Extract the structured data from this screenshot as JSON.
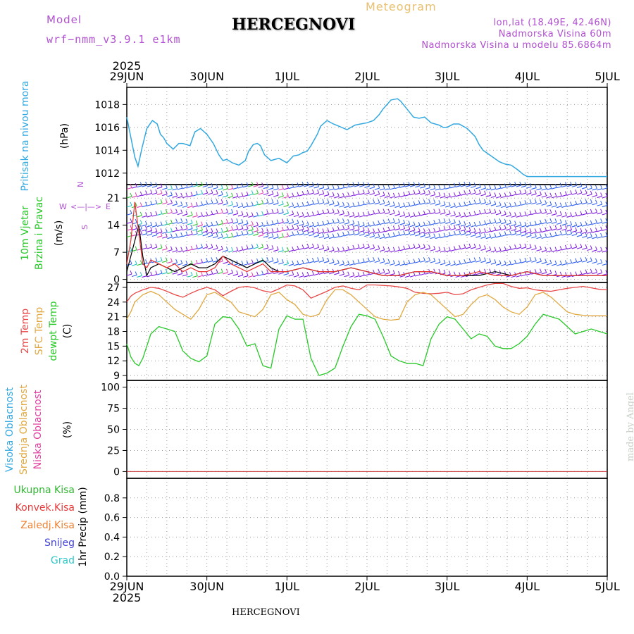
{
  "header": {
    "model_label": "Model",
    "model_name": "wrf−nmm_v3.9.1  e1km",
    "title": "HERCEGNOVI",
    "meteogram": "Meteogram",
    "lonlat": "lon,lat (18.49E, 42.46N)",
    "elevation": "Nadmorska Visina 60m",
    "model_elevation": "Nadmorska Visina u modelu 85.6864m",
    "watermark": "made by Angel",
    "footer_title": "HERCEGNOVI"
  },
  "colors": {
    "pressure": "#33a8e0",
    "temp2m": "#e84848",
    "sfc_temp": "#e0a840",
    "dewpt": "#28c828",
    "wind_speed": "#000000",
    "gust": "#e83030",
    "grid": "#9a9a9a",
    "purple_label": "#b050d0",
    "meteogram_label": "#e8c070"
  },
  "chart_data": [
    {
      "type": "line",
      "panel": "pressure",
      "title": "",
      "ylabel": [
        "Pritisak na nivou mora",
        "(hPa)"
      ],
      "ylim": [
        1011,
        1019.5
      ],
      "yticks": [
        1012,
        1014,
        1016,
        1018
      ],
      "x_ticks": [
        "29JUN",
        "30JUN",
        "1JUL",
        "2JUL",
        "3JUL",
        "4JUL",
        "5JUL"
      ],
      "x_year": "2025",
      "series": [
        {
          "color_key": "pressure",
          "x": [
            0,
            0.04,
            0.08,
            0.1,
            0.14,
            0.19,
            0.25,
            0.32,
            0.38,
            0.42,
            0.46,
            0.5,
            0.58,
            0.65,
            0.7,
            0.79,
            0.85,
            0.92,
            1.0,
            1.08,
            1.15,
            1.2,
            1.25,
            1.32,
            1.4,
            1.48,
            1.52,
            1.58,
            1.63,
            1.67,
            1.72,
            1.8,
            1.9,
            2.0,
            2.08,
            2.15,
            2.2,
            2.25,
            2.3,
            2.38,
            2.42,
            2.5,
            2.58,
            2.65,
            2.75,
            2.85,
            2.92,
            3.0,
            3.08,
            3.15,
            3.2,
            3.25,
            3.3,
            3.38,
            3.42,
            3.5,
            3.58,
            3.65,
            3.72,
            3.8,
            3.9,
            3.95,
            4.0,
            4.08,
            4.15,
            4.25,
            4.35,
            4.4,
            4.45,
            4.55,
            4.65,
            4.72,
            4.8,
            4.88,
            4.95,
            5.0,
            5.05,
            5.1,
            5.15,
            5.2,
            5.28,
            5.35,
            5.45,
            5.5,
            5.55,
            5.6,
            5.65,
            5.72,
            5.8,
            5.88,
            5.95,
            6.0
          ],
          "values": [
            1016.9,
            1015.5,
            1014.1,
            1013.4,
            1012.6,
            1014.2,
            1015.9,
            1016.6,
            1016.3,
            1015.4,
            1015.1,
            1014.6,
            1014.1,
            1014.6,
            1014.6,
            1014.4,
            1015.6,
            1015.9,
            1015.4,
            1014.6,
            1013.6,
            1013.1,
            1013.2,
            1012.9,
            1012.7,
            1013.1,
            1013.9,
            1014.5,
            1014.6,
            1014.4,
            1013.6,
            1013.1,
            1013.3,
            1012.9,
            1013.5,
            1013.6,
            1013.8,
            1013.9,
            1014.4,
            1015.4,
            1016.1,
            1016.6,
            1016.3,
            1016.1,
            1015.8,
            1016.2,
            1016.3,
            1016.4,
            1016.6,
            1017.1,
            1017.6,
            1018.0,
            1018.4,
            1018.5,
            1018.3,
            1017.6,
            1016.9,
            1016.8,
            1016.9,
            1016.4,
            1016.2,
            1016.0,
            1016.0,
            1016.3,
            1016.3,
            1015.9,
            1015.2,
            1014.5,
            1014.0,
            1013.5,
            1013.0,
            1012.8,
            1012.7,
            1012.3,
            1011.9,
            1011.7,
            1011.7,
            1011.7,
            1011.7,
            1011.7,
            1011.7,
            1011.7,
            1011.7,
            1011.7,
            1011.7,
            1011.7,
            1011.7,
            1011.7,
            1011.7,
            1011.7,
            1011.7,
            1011.7
          ]
        }
      ]
    },
    {
      "type": "line",
      "panel": "wind",
      "title": "",
      "ylabel": [
        "10m Vjetar",
        "Brzina i Pravac",
        "(m/s)"
      ],
      "direction_legend": [
        "N",
        "W",
        "E",
        "S",
        "<—|—>"
      ],
      "ylim": [
        -0.8,
        24.5
      ],
      "yticks": [
        0,
        7,
        14,
        21
      ],
      "barb_rows": [
        1,
        4,
        7.5,
        11,
        12.3,
        14,
        16.5,
        19,
        21.5,
        23.5
      ],
      "series": [
        {
          "name": "",
          "color_key": "wind_speed",
          "x": [
            0,
            0.05,
            0.1,
            0.15,
            0.2,
            0.25,
            0.3,
            0.4,
            0.5,
            0.6,
            0.7,
            0.8,
            0.9,
            1.0,
            1.1,
            1.2,
            1.3,
            1.4,
            1.5,
            1.6,
            1.7,
            1.8,
            1.9,
            2.0,
            2.2,
            2.4,
            2.6,
            2.8,
            3.0,
            3.2,
            3.4,
            3.6,
            3.8,
            4.0,
            4.2,
            4.4,
            4.6,
            4.8,
            5.0,
            5.2,
            5.4,
            5.6,
            5.8,
            6.0
          ],
          "values": [
            2,
            6,
            10,
            14,
            6,
            1,
            3,
            4,
            3,
            2,
            3,
            4,
            3,
            3,
            4,
            6,
            5,
            4,
            3,
            4,
            5,
            3,
            2,
            2,
            3,
            2,
            2,
            3,
            2,
            1,
            1,
            2,
            2,
            1,
            1,
            1,
            2,
            1,
            2,
            1,
            1,
            1,
            1,
            1
          ]
        },
        {
          "name": "",
          "color_key": "gust",
          "x": [
            0,
            0.05,
            0.1,
            0.15,
            0.2,
            0.25,
            0.3,
            0.4,
            0.5,
            0.6,
            0.7,
            0.8,
            0.9,
            1.0,
            1.1,
            1.2,
            1.3,
            1.4,
            1.5,
            1.6,
            1.7,
            1.8,
            1.9,
            2.0,
            2.2,
            2.4,
            2.6,
            2.8,
            3.0,
            3.2,
            3.4,
            3.6,
            3.8,
            4.0,
            4.2,
            4.4,
            4.6,
            4.8,
            5.0,
            5.2,
            5.4,
            5.6,
            5.8,
            6.0
          ],
          "values": [
            4,
            10,
            20,
            12,
            4,
            3,
            5,
            4,
            3,
            4,
            2,
            3,
            2,
            2,
            3,
            6,
            4,
            3,
            2,
            3,
            4,
            2,
            2,
            2,
            3,
            2,
            2,
            3,
            2,
            1,
            1,
            2,
            2,
            1,
            1,
            2,
            1,
            1,
            2,
            1,
            1,
            1,
            1,
            1
          ]
        }
      ]
    },
    {
      "type": "line",
      "panel": "temperature",
      "title": "",
      "ylabel": [
        "2m Temp",
        "SFC Temp",
        "dewpt Temp",
        "(C)"
      ],
      "ylim": [
        8,
        28
      ],
      "yticks": [
        9,
        12,
        15,
        18,
        21,
        24,
        27
      ],
      "series": [
        {
          "name": "2m Temp",
          "color_key": "temp2m",
          "x": [
            0,
            0.05,
            0.1,
            0.2,
            0.3,
            0.4,
            0.5,
            0.6,
            0.7,
            0.8,
            0.9,
            1.0,
            1.1,
            1.2,
            1.3,
            1.4,
            1.5,
            1.6,
            1.7,
            1.8,
            1.9,
            2.0,
            2.1,
            2.2,
            2.3,
            2.4,
            2.5,
            2.6,
            2.7,
            2.8,
            2.9,
            3.0,
            3.1,
            3.2,
            3.3,
            3.4,
            3.5,
            3.6,
            3.7,
            3.8,
            3.9,
            4.0,
            4.1,
            4.2,
            4.3,
            4.4,
            4.5,
            4.6,
            4.7,
            4.8,
            4.9,
            5.0,
            5.1,
            5.2,
            5.3,
            5.4,
            5.5,
            5.6,
            5.7,
            5.8,
            5.9,
            6.0
          ],
          "values": [
            24,
            25.2,
            25.8,
            26.5,
            27,
            26.8,
            26.2,
            25.5,
            25,
            25.8,
            26.5,
            27,
            26.5,
            25.3,
            26.2,
            27,
            27.2,
            26.9,
            26.3,
            26,
            26.7,
            27.5,
            27.3,
            26.5,
            24.8,
            25.5,
            26.2,
            27,
            27.3,
            26.8,
            26.5,
            27.5,
            27.5,
            27.4,
            27.3,
            27.1,
            26.8,
            26,
            25.8,
            25.7,
            25.8,
            26,
            25.5,
            25.7,
            26.5,
            27,
            27.5,
            27.8,
            27.8,
            27.2,
            26.8,
            26.9,
            26.5,
            26.3,
            26.2,
            26.5,
            26.8,
            27,
            27.2,
            26.9,
            26.6,
            26.5
          ]
        },
        {
          "name": "SFC Temp",
          "color_key": "sfc_temp",
          "x": [
            0,
            0.05,
            0.1,
            0.2,
            0.3,
            0.4,
            0.5,
            0.6,
            0.7,
            0.8,
            0.9,
            1.0,
            1.1,
            1.2,
            1.3,
            1.4,
            1.5,
            1.6,
            1.7,
            1.8,
            1.9,
            2.0,
            2.1,
            2.2,
            2.3,
            2.4,
            2.5,
            2.6,
            2.7,
            2.8,
            2.9,
            3.0,
            3.1,
            3.2,
            3.3,
            3.4,
            3.5,
            3.6,
            3.7,
            3.8,
            3.9,
            4.0,
            4.1,
            4.2,
            4.3,
            4.4,
            4.5,
            4.6,
            4.7,
            4.8,
            4.9,
            5.0,
            5.1,
            5.2,
            5.3,
            5.4,
            5.5,
            5.6,
            5.7,
            5.8,
            5.9,
            6.0
          ],
          "values": [
            20.5,
            22,
            24,
            25.5,
            26.2,
            25.5,
            24,
            22.5,
            21.5,
            20.5,
            22.5,
            25.5,
            26,
            25,
            24,
            22,
            21.5,
            21,
            22.5,
            25.5,
            26,
            24.5,
            23.5,
            21.5,
            21,
            21.5,
            24.5,
            26.5,
            26.5,
            25.5,
            24,
            22.5,
            21,
            20.5,
            20.3,
            20.5,
            24,
            25.5,
            26,
            25.5,
            24,
            22.5,
            21,
            21.5,
            23.5,
            25,
            25.5,
            24.5,
            23,
            22,
            21.5,
            23,
            25.5,
            26,
            25,
            23.5,
            22,
            21.5,
            21.3,
            21.2,
            21.2,
            21.2
          ]
        },
        {
          "name": "dewpt Temp",
          "color_key": "dewpt",
          "x": [
            0,
            0.05,
            0.1,
            0.15,
            0.2,
            0.3,
            0.4,
            0.5,
            0.6,
            0.7,
            0.8,
            0.9,
            1.0,
            1.1,
            1.2,
            1.3,
            1.4,
            1.5,
            1.6,
            1.7,
            1.8,
            1.9,
            2.0,
            2.1,
            2.2,
            2.3,
            2.4,
            2.5,
            2.6,
            2.7,
            2.8,
            2.9,
            3.0,
            3.1,
            3.2,
            3.3,
            3.4,
            3.5,
            3.6,
            3.7,
            3.8,
            3.9,
            4.0,
            4.1,
            4.2,
            4.3,
            4.4,
            4.5,
            4.6,
            4.7,
            4.8,
            4.9,
            5.0,
            5.1,
            5.2,
            5.3,
            5.4,
            5.5,
            5.6,
            5.7,
            5.8,
            5.9,
            6.0
          ],
          "values": [
            15.5,
            12.8,
            11.5,
            11,
            12.5,
            17.5,
            19,
            18.5,
            18,
            14,
            12.5,
            11.8,
            13,
            19.5,
            21,
            20.8,
            18.5,
            15,
            15.5,
            11,
            10.5,
            18.5,
            21.2,
            20.5,
            20.5,
            12.5,
            9,
            9.5,
            10.5,
            15,
            19,
            21.5,
            21.2,
            20.5,
            17,
            13,
            12,
            11.5,
            11.5,
            11,
            16.5,
            19.5,
            21,
            20.5,
            18.5,
            16.5,
            17.5,
            17,
            15,
            14.5,
            14.5,
            15.5,
            17,
            19.5,
            21.5,
            21,
            20.5,
            19,
            17.5,
            18,
            18.5,
            18,
            17.5
          ]
        }
      ]
    },
    {
      "type": "area",
      "panel": "cloud",
      "title": "",
      "ylabel": [
        "Visoka Oblacnost",
        "Srednja Oblacnost",
        "Niska Oblacnost",
        "(%)"
      ],
      "ylim": [
        -8,
        108
      ],
      "yticks": [
        0,
        25,
        50,
        75,
        100
      ],
      "series": [
        {
          "name": "Visoka Oblacnost",
          "values": [
            0,
            0,
            0,
            0,
            0,
            0,
            0
          ]
        },
        {
          "name": "Srednja Oblacnost",
          "values": [
            0,
            0,
            0,
            0,
            0,
            0,
            0
          ]
        },
        {
          "name": "Niska Oblacnost",
          "values": [
            0,
            0,
            0,
            0,
            0,
            0,
            0
          ]
        }
      ]
    },
    {
      "type": "bar",
      "panel": "precip",
      "title": "",
      "ylabel": [
        "1hr Precip (mm)"
      ],
      "ylim": [
        0,
        1.0
      ],
      "yticks": [
        "0.0",
        "0.2",
        "0.4",
        "0.6",
        "0.8"
      ],
      "legend": [
        {
          "name": "Ukupna Kisa",
          "color": "#30b830"
        },
        {
          "name": "Konvek.Kisa",
          "color": "#e83838"
        },
        {
          "name": "Zaledj.Kisa",
          "color": "#f08030"
        },
        {
          "name": "Snijeg",
          "color": "#4040d8"
        },
        {
          "name": "Grad",
          "color": "#30c8c8"
        }
      ],
      "series": [
        {
          "name": "Ukupna Kisa",
          "values": [
            0,
            0,
            0,
            0,
            0,
            0,
            0
          ]
        }
      ]
    }
  ]
}
